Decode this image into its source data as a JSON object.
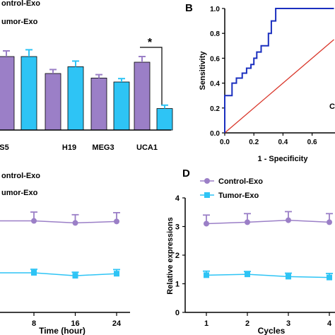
{
  "colors": {
    "control": "#9b7fc7",
    "tumor": "#2ec4f5",
    "roc_curve": "#1a2fbf",
    "diagonal": "#d9362a",
    "axis": "#000000"
  },
  "panel_labels": {
    "B": "B",
    "D": "D",
    "D_peek": "C"
  },
  "chart_data": [
    {
      "id": "A",
      "type": "bar",
      "legend": [
        "ontrol-Exo",
        "umor-Exo"
      ],
      "categories": [
        "S5",
        "H19",
        "MEG3",
        "UCA1"
      ],
      "series": [
        {
          "name": "Control-Exo",
          "values": [
            1.3,
            1.0,
            0.92,
            1.2
          ],
          "errors": [
            0.1,
            0.07,
            0.06,
            0.1
          ]
        },
        {
          "name": "Tumor-Exo",
          "values": [
            1.3,
            1.12,
            0.85,
            0.38
          ],
          "errors": [
            0.12,
            0.1,
            0.06,
            0.06
          ]
        }
      ],
      "annotation": "*"
    },
    {
      "id": "B",
      "type": "line",
      "xlabel": "1 - Specificity",
      "ylabel": "Sensitivity",
      "x_ticks": [
        "0.0",
        "0.2",
        "0.4",
        "0.6"
      ],
      "y_ticks": [
        "0.0",
        "0.2",
        "0.4",
        "0.6",
        "0.8",
        "1.0"
      ],
      "xlim": [
        0,
        0.75
      ],
      "ylim": [
        0,
        1
      ],
      "roc_points": [
        [
          0,
          0
        ],
        [
          0,
          0.3
        ],
        [
          0.05,
          0.3
        ],
        [
          0.05,
          0.4
        ],
        [
          0.08,
          0.4
        ],
        [
          0.08,
          0.44
        ],
        [
          0.12,
          0.44
        ],
        [
          0.12,
          0.48
        ],
        [
          0.15,
          0.48
        ],
        [
          0.15,
          0.52
        ],
        [
          0.18,
          0.52
        ],
        [
          0.18,
          0.55
        ],
        [
          0.2,
          0.55
        ],
        [
          0.2,
          0.6
        ],
        [
          0.22,
          0.6
        ],
        [
          0.22,
          0.65
        ],
        [
          0.25,
          0.65
        ],
        [
          0.25,
          0.7
        ],
        [
          0.3,
          0.7
        ],
        [
          0.3,
          0.8
        ],
        [
          0.32,
          0.8
        ],
        [
          0.32,
          0.9
        ],
        [
          0.35,
          0.9
        ],
        [
          0.35,
          1.0
        ],
        [
          0.75,
          1.0
        ]
      ],
      "diagonal": [
        [
          0,
          0
        ],
        [
          0.75,
          0.75
        ]
      ]
    },
    {
      "id": "C",
      "type": "line",
      "legend": [
        "ontrol-Exo",
        "umor-Exo"
      ],
      "xlabel": "Time (hour)",
      "x_ticks": [
        "8",
        "16",
        "24"
      ],
      "x": [
        8,
        16,
        24
      ],
      "series": [
        {
          "name": "Control-Exo",
          "values": [
            3.12,
            3.05,
            3.1
          ],
          "errors": [
            0.3,
            0.28,
            0.3
          ]
        },
        {
          "name": "Tumor-Exo",
          "values": [
            1.35,
            1.25,
            1.32
          ],
          "errors": [
            0.12,
            0.12,
            0.14
          ]
        }
      ]
    },
    {
      "id": "D",
      "type": "line",
      "legend": [
        "Control-Exo",
        "Tumor-Exo"
      ],
      "xlabel": "Cycles",
      "ylabel": "Relative expressions",
      "x_ticks": [
        "1",
        "2",
        "3",
        "4"
      ],
      "y_ticks": [
        "0",
        "1",
        "2",
        "3",
        "4"
      ],
      "x": [
        1,
        2,
        3,
        4
      ],
      "ylim": [
        0,
        4
      ],
      "series": [
        {
          "name": "Control-Exo",
          "values": [
            3.1,
            3.15,
            3.22,
            3.15
          ],
          "errors": [
            0.3,
            0.3,
            0.3,
            0.3
          ]
        },
        {
          "name": "Tumor-Exo",
          "values": [
            1.3,
            1.33,
            1.25,
            1.22
          ],
          "errors": [
            0.14,
            0.1,
            0.12,
            0.14
          ]
        }
      ]
    }
  ]
}
